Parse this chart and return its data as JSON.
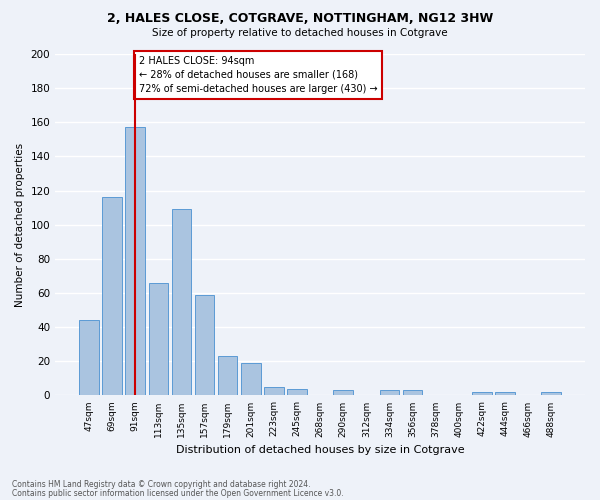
{
  "title1": "2, HALES CLOSE, COTGRAVE, NOTTINGHAM, NG12 3HW",
  "title2": "Size of property relative to detached houses in Cotgrave",
  "xlabel": "Distribution of detached houses by size in Cotgrave",
  "ylabel": "Number of detached properties",
  "bar_labels": [
    "47sqm",
    "69sqm",
    "91sqm",
    "113sqm",
    "135sqm",
    "157sqm",
    "179sqm",
    "201sqm",
    "223sqm",
    "245sqm",
    "268sqm",
    "290sqm",
    "312sqm",
    "334sqm",
    "356sqm",
    "378sqm",
    "400sqm",
    "422sqm",
    "444sqm",
    "466sqm",
    "488sqm"
  ],
  "bar_values": [
    44,
    116,
    157,
    66,
    109,
    59,
    23,
    19,
    5,
    4,
    0,
    3,
    0,
    3,
    3,
    0,
    0,
    2,
    2,
    0,
    2
  ],
  "bar_color": "#aac4e0",
  "bar_edge_color": "#5b9bd5",
  "background_color": "#eef2f9",
  "grid_color": "#ffffff",
  "annotation_box_text": "2 HALES CLOSE: 94sqm\n← 28% of detached houses are smaller (168)\n72% of semi-detached houses are larger (430) →",
  "ylim": [
    0,
    200
  ],
  "yticks": [
    0,
    20,
    40,
    60,
    80,
    100,
    120,
    140,
    160,
    180,
    200
  ],
  "footer1": "Contains HM Land Registry data © Crown copyright and database right 2024.",
  "footer2": "Contains public sector information licensed under the Open Government Licence v3.0.",
  "red_line_color": "#cc0000",
  "annotation_box_color": "#ffffff",
  "annotation_box_edge_color": "#cc0000"
}
